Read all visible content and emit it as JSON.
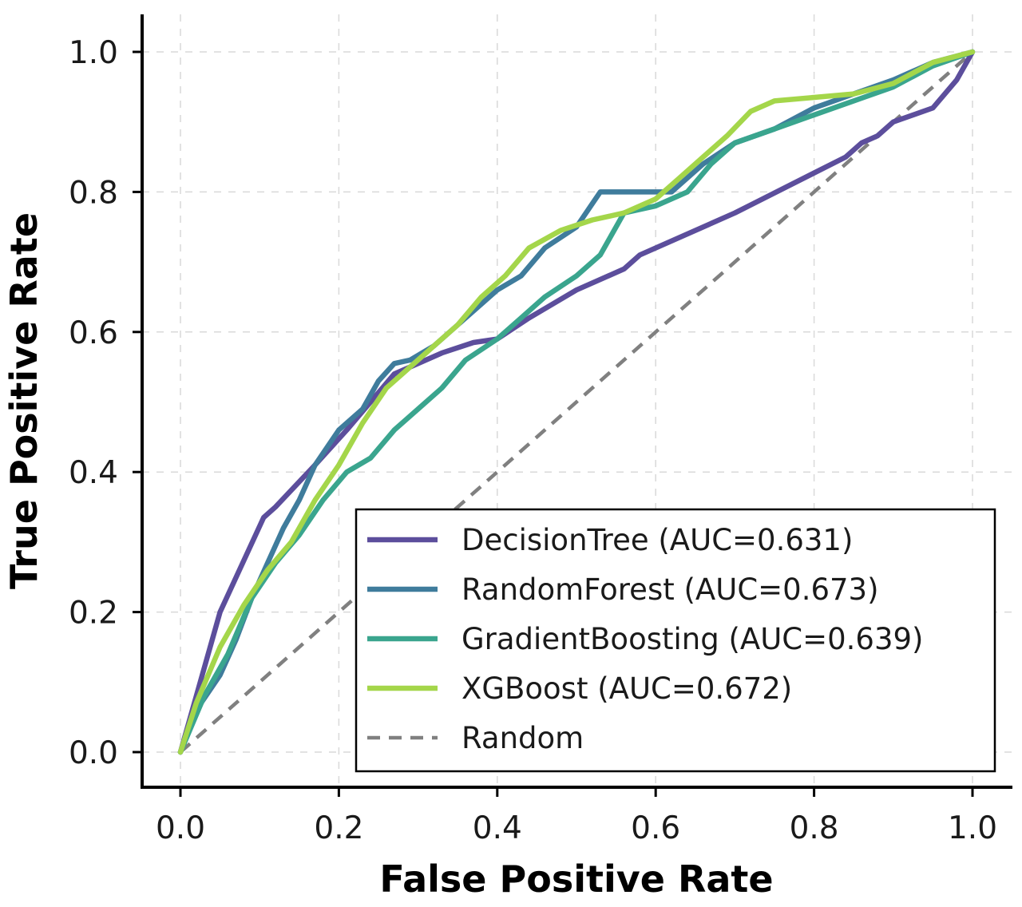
{
  "chart_data": {
    "type": "line",
    "title": "",
    "xlabel": "False Positive Rate",
    "ylabel": "True Positive Rate",
    "xlim": [
      0.0,
      1.0
    ],
    "ylim": [
      0.0,
      1.0
    ],
    "x_ticks": [
      "0.0",
      "0.2",
      "0.4",
      "0.6",
      "0.8",
      "1.0"
    ],
    "y_ticks": [
      "0.0",
      "0.2",
      "0.4",
      "0.6",
      "0.8",
      "1.0"
    ],
    "grid": true,
    "legend_position": "lower-right",
    "series": [
      {
        "name": "DecisionTree (AUC=0.631)",
        "color": "#5c4e9c",
        "style": "solid",
        "points": [
          [
            0,
            0
          ],
          [
            0.05,
            0.2
          ],
          [
            0.105,
            0.335
          ],
          [
            0.12,
            0.35
          ],
          [
            0.17,
            0.41
          ],
          [
            0.21,
            0.46
          ],
          [
            0.24,
            0.5
          ],
          [
            0.27,
            0.54
          ],
          [
            0.29,
            0.55
          ],
          [
            0.33,
            0.57
          ],
          [
            0.37,
            0.585
          ],
          [
            0.4,
            0.59
          ],
          [
            0.44,
            0.62
          ],
          [
            0.5,
            0.66
          ],
          [
            0.56,
            0.69
          ],
          [
            0.58,
            0.71
          ],
          [
            0.7,
            0.77
          ],
          [
            0.84,
            0.85
          ],
          [
            0.86,
            0.87
          ],
          [
            0.88,
            0.88
          ],
          [
            0.9,
            0.9
          ],
          [
            0.95,
            0.92
          ],
          [
            0.98,
            0.96
          ],
          [
            1.0,
            1.0
          ]
        ]
      },
      {
        "name": "RandomForest (AUC=0.673)",
        "color": "#3f7c9c",
        "style": "solid",
        "points": [
          [
            0,
            0
          ],
          [
            0.02,
            0.06
          ],
          [
            0.05,
            0.11
          ],
          [
            0.07,
            0.16
          ],
          [
            0.09,
            0.22
          ],
          [
            0.11,
            0.27
          ],
          [
            0.13,
            0.32
          ],
          [
            0.15,
            0.36
          ],
          [
            0.17,
            0.41
          ],
          [
            0.2,
            0.46
          ],
          [
            0.23,
            0.49
          ],
          [
            0.25,
            0.53
          ],
          [
            0.27,
            0.555
          ],
          [
            0.29,
            0.56
          ],
          [
            0.32,
            0.58
          ],
          [
            0.35,
            0.61
          ],
          [
            0.38,
            0.64
          ],
          [
            0.4,
            0.66
          ],
          [
            0.43,
            0.68
          ],
          [
            0.46,
            0.72
          ],
          [
            0.5,
            0.75
          ],
          [
            0.53,
            0.8
          ],
          [
            0.58,
            0.8
          ],
          [
            0.62,
            0.8
          ],
          [
            0.66,
            0.84
          ],
          [
            0.7,
            0.87
          ],
          [
            0.75,
            0.89
          ],
          [
            0.8,
            0.92
          ],
          [
            0.85,
            0.94
          ],
          [
            0.9,
            0.96
          ],
          [
            0.95,
            0.985
          ],
          [
            1.0,
            1.0
          ]
        ]
      },
      {
        "name": "GradientBoosting (AUC=0.639)",
        "color": "#3aa58e",
        "style": "solid",
        "points": [
          [
            0,
            0
          ],
          [
            0.03,
            0.08
          ],
          [
            0.06,
            0.14
          ],
          [
            0.09,
            0.22
          ],
          [
            0.12,
            0.27
          ],
          [
            0.15,
            0.31
          ],
          [
            0.18,
            0.36
          ],
          [
            0.21,
            0.4
          ],
          [
            0.24,
            0.42
          ],
          [
            0.27,
            0.46
          ],
          [
            0.3,
            0.49
          ],
          [
            0.33,
            0.52
          ],
          [
            0.36,
            0.56
          ],
          [
            0.4,
            0.59
          ],
          [
            0.43,
            0.62
          ],
          [
            0.46,
            0.65
          ],
          [
            0.5,
            0.68
          ],
          [
            0.53,
            0.71
          ],
          [
            0.56,
            0.77
          ],
          [
            0.6,
            0.78
          ],
          [
            0.64,
            0.8
          ],
          [
            0.67,
            0.84
          ],
          [
            0.7,
            0.87
          ],
          [
            0.75,
            0.89
          ],
          [
            0.8,
            0.91
          ],
          [
            0.85,
            0.93
          ],
          [
            0.9,
            0.95
          ],
          [
            0.95,
            0.98
          ],
          [
            1.0,
            1.0
          ]
        ]
      },
      {
        "name": "XGBoost (AUC=0.672)",
        "color": "#a4d64a",
        "style": "solid",
        "points": [
          [
            0,
            0
          ],
          [
            0.02,
            0.07
          ],
          [
            0.05,
            0.15
          ],
          [
            0.08,
            0.21
          ],
          [
            0.11,
            0.26
          ],
          [
            0.14,
            0.3
          ],
          [
            0.17,
            0.36
          ],
          [
            0.2,
            0.41
          ],
          [
            0.23,
            0.47
          ],
          [
            0.26,
            0.52
          ],
          [
            0.29,
            0.55
          ],
          [
            0.32,
            0.58
          ],
          [
            0.35,
            0.61
          ],
          [
            0.38,
            0.65
          ],
          [
            0.41,
            0.68
          ],
          [
            0.44,
            0.72
          ],
          [
            0.48,
            0.745
          ],
          [
            0.52,
            0.76
          ],
          [
            0.56,
            0.77
          ],
          [
            0.6,
            0.79
          ],
          [
            0.63,
            0.82
          ],
          [
            0.66,
            0.85
          ],
          [
            0.69,
            0.88
          ],
          [
            0.72,
            0.915
          ],
          [
            0.75,
            0.93
          ],
          [
            0.8,
            0.935
          ],
          [
            0.85,
            0.94
          ],
          [
            0.9,
            0.955
          ],
          [
            0.95,
            0.985
          ],
          [
            1.0,
            1.0
          ]
        ]
      },
      {
        "name": "Random",
        "color": "#808080",
        "style": "dashed",
        "points": [
          [
            0,
            0
          ],
          [
            1,
            1
          ]
        ]
      }
    ]
  }
}
